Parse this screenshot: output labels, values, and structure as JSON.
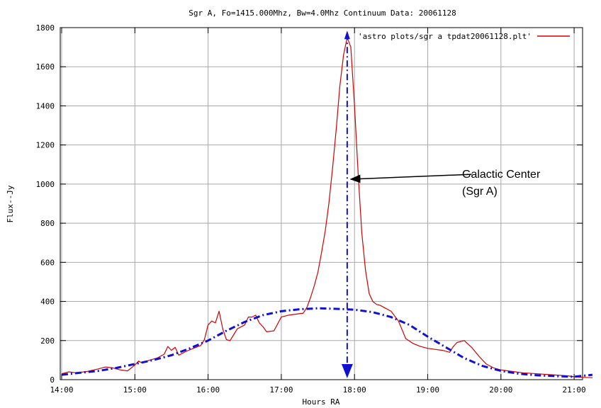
{
  "chart_data": {
    "type": "line",
    "title": "Sgr A, Fo=1415.000Mhz, Bw=4.0Mhz Continuum Data: 20061128",
    "xlabel": "Hours RA",
    "ylabel": "Flux--Jy",
    "xlim": [
      14.0,
      21.25
    ],
    "ylim": [
      0,
      1800
    ],
    "x_ticks": [
      14,
      15,
      16,
      17,
      18,
      19,
      20,
      21
    ],
    "x_tick_labels": [
      "14:00",
      "15:00",
      "16:00",
      "17:00",
      "18:00",
      "19:00",
      "20:00",
      "21:00"
    ],
    "y_ticks": [
      0,
      200,
      400,
      600,
      800,
      1000,
      1200,
      1400,
      1600,
      1800
    ],
    "y_tick_labels": [
      "0",
      "200",
      "400",
      "600",
      "800",
      "1000",
      "1200",
      "1400",
      "1600",
      "1800"
    ],
    "grid": true,
    "legend_position": "top-right",
    "series": [
      {
        "name": "'astro plots/sgr a tpdat20061128.plt'",
        "color": "#d00000",
        "points": [
          [
            14.0,
            30
          ],
          [
            14.1,
            40
          ],
          [
            14.2,
            35
          ],
          [
            14.35,
            42
          ],
          [
            14.5,
            55
          ],
          [
            14.6,
            65
          ],
          [
            14.7,
            60
          ],
          [
            14.8,
            50
          ],
          [
            14.9,
            45
          ],
          [
            15.0,
            75
          ],
          [
            15.05,
            95
          ],
          [
            15.1,
            85
          ],
          [
            15.2,
            100
          ],
          [
            15.3,
            110
          ],
          [
            15.4,
            130
          ],
          [
            15.45,
            170
          ],
          [
            15.5,
            150
          ],
          [
            15.55,
            165
          ],
          [
            15.6,
            125
          ],
          [
            15.7,
            145
          ],
          [
            15.8,
            160
          ],
          [
            15.9,
            175
          ],
          [
            15.95,
            205
          ],
          [
            16.0,
            280
          ],
          [
            16.05,
            300
          ],
          [
            16.1,
            290
          ],
          [
            16.15,
            350
          ],
          [
            16.2,
            260
          ],
          [
            16.25,
            205
          ],
          [
            16.3,
            200
          ],
          [
            16.35,
            230
          ],
          [
            16.4,
            260
          ],
          [
            16.5,
            280
          ],
          [
            16.55,
            320
          ],
          [
            16.6,
            320
          ],
          [
            16.65,
            330
          ],
          [
            16.7,
            290
          ],
          [
            16.75,
            270
          ],
          [
            16.8,
            245
          ],
          [
            16.9,
            250
          ],
          [
            16.95,
            285
          ],
          [
            17.0,
            320
          ],
          [
            17.1,
            330
          ],
          [
            17.2,
            335
          ],
          [
            17.3,
            340
          ],
          [
            17.35,
            370
          ],
          [
            17.4,
            420
          ],
          [
            17.45,
            480
          ],
          [
            17.5,
            550
          ],
          [
            17.55,
            650
          ],
          [
            17.6,
            760
          ],
          [
            17.65,
            900
          ],
          [
            17.7,
            1080
          ],
          [
            17.75,
            1280
          ],
          [
            17.8,
            1500
          ],
          [
            17.85,
            1660
          ],
          [
            17.9,
            1750
          ],
          [
            17.95,
            1700
          ],
          [
            18.0,
            1400
          ],
          [
            18.05,
            1050
          ],
          [
            18.1,
            750
          ],
          [
            18.15,
            560
          ],
          [
            18.2,
            440
          ],
          [
            18.25,
            400
          ],
          [
            18.3,
            385
          ],
          [
            18.35,
            380
          ],
          [
            18.4,
            370
          ],
          [
            18.5,
            350
          ],
          [
            18.6,
            300
          ],
          [
            18.7,
            210
          ],
          [
            18.8,
            185
          ],
          [
            18.9,
            170
          ],
          [
            19.0,
            160
          ],
          [
            19.1,
            155
          ],
          [
            19.2,
            150
          ],
          [
            19.3,
            140
          ],
          [
            19.35,
            170
          ],
          [
            19.4,
            190
          ],
          [
            19.5,
            200
          ],
          [
            19.6,
            165
          ],
          [
            19.7,
            120
          ],
          [
            19.8,
            80
          ],
          [
            19.9,
            60
          ],
          [
            20.0,
            50
          ],
          [
            20.1,
            45
          ],
          [
            20.2,
            40
          ],
          [
            20.3,
            35
          ],
          [
            20.5,
            30
          ],
          [
            20.7,
            25
          ],
          [
            20.9,
            20
          ],
          [
            21.0,
            15
          ],
          [
            21.1,
            12
          ],
          [
            21.25,
            10
          ]
        ]
      },
      {
        "name": "",
        "color": "#1010d0",
        "style": "dash-dot",
        "points": [
          [
            14.0,
            25
          ],
          [
            14.25,
            35
          ],
          [
            14.5,
            45
          ],
          [
            14.75,
            60
          ],
          [
            15.0,
            80
          ],
          [
            15.25,
            100
          ],
          [
            15.5,
            125
          ],
          [
            15.75,
            160
          ],
          [
            16.0,
            200
          ],
          [
            16.25,
            250
          ],
          [
            16.5,
            295
          ],
          [
            16.75,
            330
          ],
          [
            17.0,
            350
          ],
          [
            17.25,
            360
          ],
          [
            17.5,
            365
          ],
          [
            17.75,
            362
          ],
          [
            18.0,
            358
          ],
          [
            18.25,
            345
          ],
          [
            18.5,
            320
          ],
          [
            18.75,
            280
          ],
          [
            19.0,
            220
          ],
          [
            19.25,
            165
          ],
          [
            19.5,
            110
          ],
          [
            19.75,
            70
          ],
          [
            20.0,
            45
          ],
          [
            20.25,
            30
          ],
          [
            20.5,
            22
          ],
          [
            20.75,
            18
          ],
          [
            21.0,
            15
          ],
          [
            21.25,
            25
          ]
        ]
      }
    ],
    "annotations": {
      "marker_line_x": 17.9,
      "marker_line_y_top": 1770,
      "marker_line_y_bottom": 15,
      "marker_color": "#1010d0",
      "label_line1": "Galactic Center",
      "label_line2": "(Sgr A)",
      "label_arrow_from": [
        19.6,
        1050
      ],
      "label_arrow_to": [
        17.95,
        1025
      ]
    }
  }
}
